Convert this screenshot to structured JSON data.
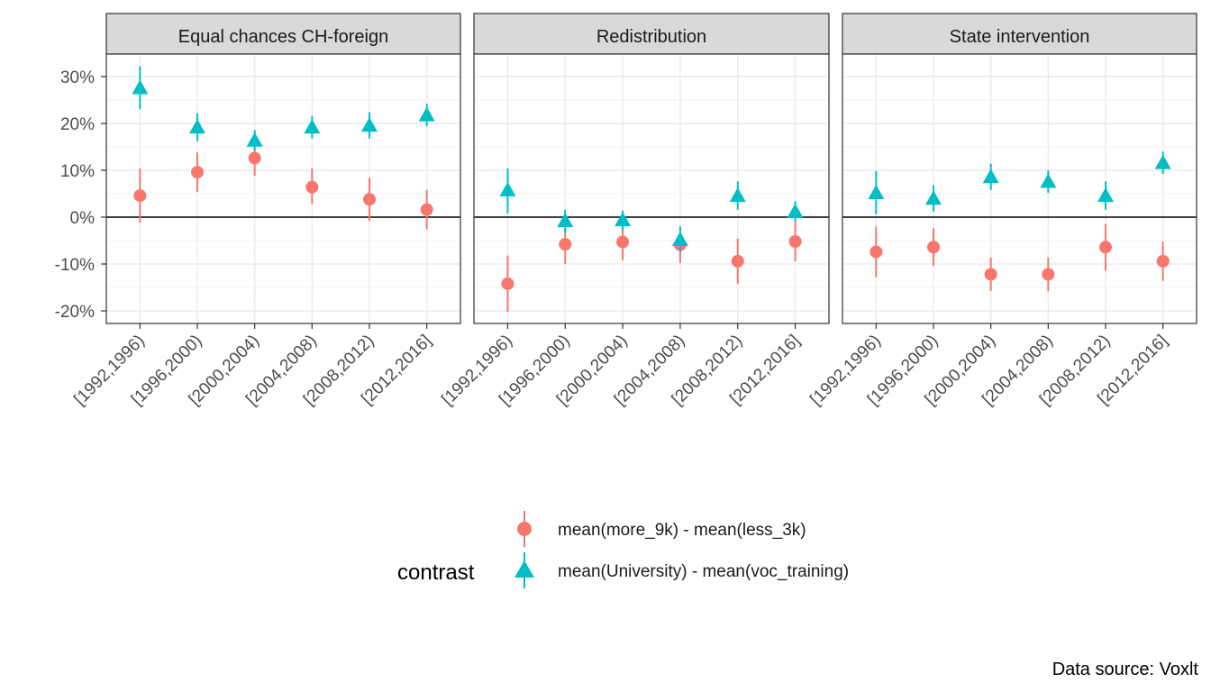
{
  "chart_data": {
    "type": "scatter",
    "panels": [
      "Equal chances CH-foreign",
      "Redistribution",
      "State intervention"
    ],
    "categories": [
      "[1992,1996)",
      "[1996,2000)",
      "[2000,2004)",
      "[2004,2008)",
      "[2008,2012)",
      "[2012,2016]"
    ],
    "y_ticks": [
      -20,
      -10,
      0,
      10,
      20,
      30
    ],
    "y_tick_labels": [
      "-20%",
      "-10%",
      "0%",
      "10%",
      "20%",
      "30%"
    ],
    "ylim": [
      -22.5,
      34.5
    ],
    "y_unit": "percent",
    "grid": true,
    "zero_line": true,
    "legend": {
      "title": "contrast",
      "position": "bottom",
      "entries": [
        "mean(more_9k) - mean(less_3k)",
        "mean(University) - mean(voc_training)"
      ]
    },
    "series": [
      {
        "name": "mean(more_9k) - mean(less_3k)",
        "color": "#F8766D",
        "shape": "circle",
        "panels": [
          {
            "values": [
              4.6,
              9.6,
              12.6,
              6.4,
              3.8,
              1.6
            ],
            "lower": [
              -1.2,
              5.4,
              8.8,
              2.8,
              -0.8,
              -2.6
            ],
            "upper": [
              10.4,
              13.8,
              16.4,
              10.4,
              8.4,
              5.8
            ]
          },
          {
            "values": [
              -14.2,
              -5.8,
              -5.3,
              -5.9,
              -9.4,
              -5.2
            ],
            "lower": [
              -20.2,
              -10.0,
              -9.2,
              -9.8,
              -14.2,
              -9.4
            ],
            "upper": [
              -8.2,
              -1.6,
              -1.4,
              -2.0,
              -4.6,
              -1.0
            ]
          },
          {
            "values": [
              -7.4,
              -6.4,
              -12.2,
              -12.2,
              -6.4,
              -9.4
            ],
            "lower": [
              -12.8,
              -10.4,
              -15.8,
              -15.8,
              -11.4,
              -13.6
            ],
            "upper": [
              -2.0,
              -2.4,
              -8.6,
              -8.6,
              -1.4,
              -5.2
            ]
          }
        ]
      },
      {
        "name": "mean(University) - mean(voc_training)",
        "color": "#00BFC4",
        "shape": "triangle",
        "panels": [
          {
            "values": [
              27.6,
              19.2,
              16.4,
              19.2,
              19.6,
              21.8
            ],
            "lower": [
              23.0,
              16.2,
              14.2,
              16.8,
              16.8,
              19.4
            ],
            "upper": [
              32.2,
              22.2,
              18.6,
              21.6,
              22.4,
              24.2
            ]
          },
          {
            "values": [
              5.8,
              -0.8,
              -0.6,
              -4.8,
              4.6,
              1.2
            ],
            "lower": [
              0.8,
              -3.4,
              -2.8,
              -7.6,
              1.6,
              -1.0
            ],
            "upper": [
              10.4,
              1.6,
              1.4,
              -2.0,
              7.6,
              3.4
            ]
          },
          {
            "values": [
              5.2,
              4.0,
              8.6,
              7.6,
              4.6,
              11.6
            ],
            "lower": [
              0.6,
              1.2,
              5.8,
              5.2,
              1.6,
              9.2
            ],
            "upper": [
              9.8,
              6.8,
              11.4,
              10.0,
              7.6,
              14.0
            ]
          }
        ]
      }
    ],
    "caption": "Data source: Voxlt"
  }
}
